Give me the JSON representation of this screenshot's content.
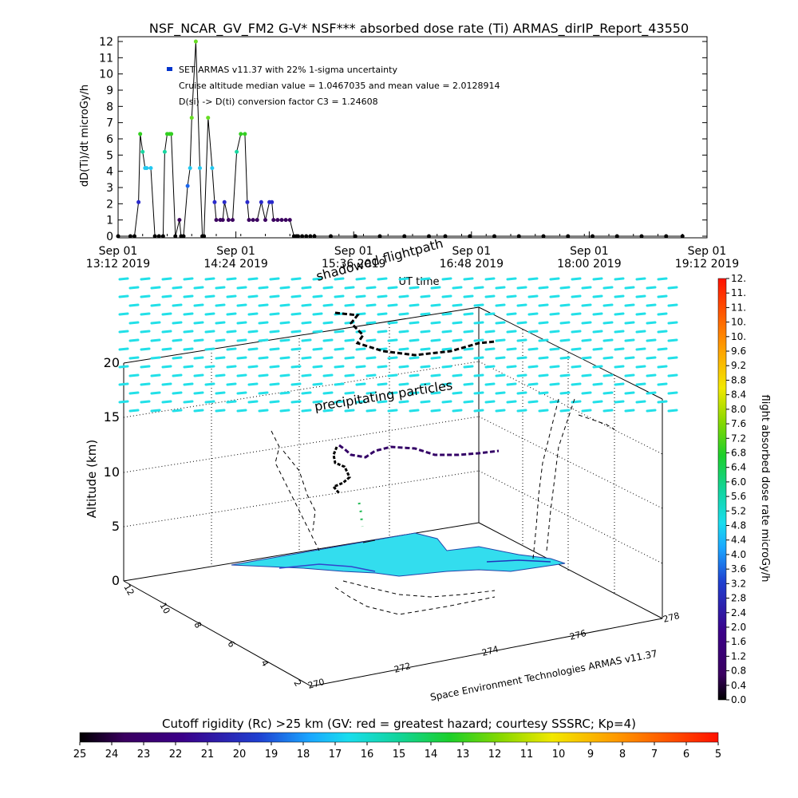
{
  "title": "NSF_NCAR_GV_FM2 G-V* NSF*** absorbed dose rate (Ti) ARMAS_dirIP_Report_43550",
  "chart_data": [
    {
      "type": "scatter",
      "name": "dose-rate-timeseries",
      "ylabel": "dD(Ti)/dt microGy/h",
      "xlabel": "UT time",
      "ylim": [
        0,
        12
      ],
      "yticks": [
        "0",
        "1",
        "2",
        "3",
        "4",
        "5",
        "6",
        "7",
        "8",
        "9",
        "10",
        "11",
        "12"
      ],
      "xticks": [
        {
          "l1": "Sep 01",
          "l2": "13:12 2019"
        },
        {
          "l1": "Sep 01",
          "l2": "14:24 2019"
        },
        {
          "l1": "Sep 01",
          "l2": "15:36 2019"
        },
        {
          "l1": "Sep 01",
          "l2": "16:48 2019"
        },
        {
          "l1": "Sep 01",
          "l2": "18:00 2019"
        },
        {
          "l1": "Sep 01",
          "l2": "19:12 2019"
        }
      ],
      "annotations": [
        "SET ARMAS v11.37 with 22% 1-sigma uncertainty",
        "Cruise altitude median value = 1.0467035 and mean value = 2.0128914",
        "D(si) -> D(ti) conversion factor C3 = 1.24608"
      ],
      "x_minutes": [
        0,
        15,
        20,
        25,
        27,
        30,
        33,
        35,
        40,
        45,
        50,
        55,
        57,
        60,
        63,
        65,
        70,
        75,
        77,
        80,
        85,
        88,
        90,
        95,
        100,
        103,
        105,
        110,
        115,
        118,
        120,
        125,
        128,
        130,
        135,
        140,
        145,
        150,
        155,
        158,
        160,
        165,
        170,
        175,
        180,
        185,
        188,
        190,
        195,
        200,
        205,
        210,
        215,
        218,
        220,
        225,
        230,
        235,
        240,
        260,
        290,
        320,
        350,
        380,
        400,
        430,
        460,
        490,
        520,
        550,
        580,
        610,
        640,
        670,
        690
      ],
      "y": [
        0,
        0,
        0,
        2.1,
        6.3,
        5.2,
        4.2,
        4.2,
        4.2,
        0,
        0,
        0,
        5.2,
        6.3,
        6.3,
        6.3,
        0,
        1,
        0,
        0,
        3.1,
        4.2,
        7.3,
        12,
        4.2,
        0,
        0,
        7.3,
        4.2,
        2.1,
        1,
        1,
        1,
        2.1,
        1,
        1,
        5.2,
        6.3,
        6.3,
        2.1,
        1,
        1,
        1,
        2.1,
        1,
        2.1,
        2.1,
        1,
        1,
        1,
        1,
        1,
        0,
        0,
        0,
        0,
        0,
        0,
        0,
        0,
        0,
        0,
        0,
        0,
        0,
        0,
        0,
        0,
        0,
        0,
        0,
        0,
        0,
        0,
        0
      ]
    },
    {
      "type": "scatter",
      "name": "3d-flight-path",
      "zlabel": "Altitude (km)",
      "zticks": [
        "0",
        "5",
        "10",
        "15",
        "20"
      ],
      "x_ticks": [
        "270",
        "272",
        "274",
        "276",
        "278"
      ],
      "y_ticks": [
        "2",
        "4",
        "6",
        "8",
        "10",
        "12"
      ],
      "annotations": [
        "shadowed flightpath",
        "precipitating particles",
        "Space Environment Technologies ARMAS v11.37"
      ]
    },
    {
      "type": "heatmap",
      "name": "color-bars",
      "colorbar_label": "flight absorbed dose rate microGy/h",
      "colorbar_ticks": [
        "0.0",
        "0.4",
        "0.8",
        "1.2",
        "1.6",
        "2.0",
        "2.4",
        "2.8",
        "3.2",
        "3.6",
        "4.0",
        "4.4",
        "4.8",
        "5.2",
        "5.6",
        "6.0",
        "6.4",
        "6.8",
        "7.2",
        "7.6",
        "8.0",
        "8.4",
        "8.8",
        "9.2",
        "9.6",
        "10.",
        "10.",
        "11.",
        "11.",
        "12."
      ],
      "bottom_label": "Cutoff rigidity (Rc) >25 km (GV: red = greatest hazard; courtesy SSSRC; Kp=4)",
      "bottom_ticks": [
        "25",
        "24",
        "23",
        "22",
        "21",
        "20",
        "19",
        "18",
        "17",
        "16",
        "15",
        "14",
        "13",
        "12",
        "11",
        "10",
        "9",
        "8",
        "7",
        "6",
        "5"
      ]
    }
  ]
}
